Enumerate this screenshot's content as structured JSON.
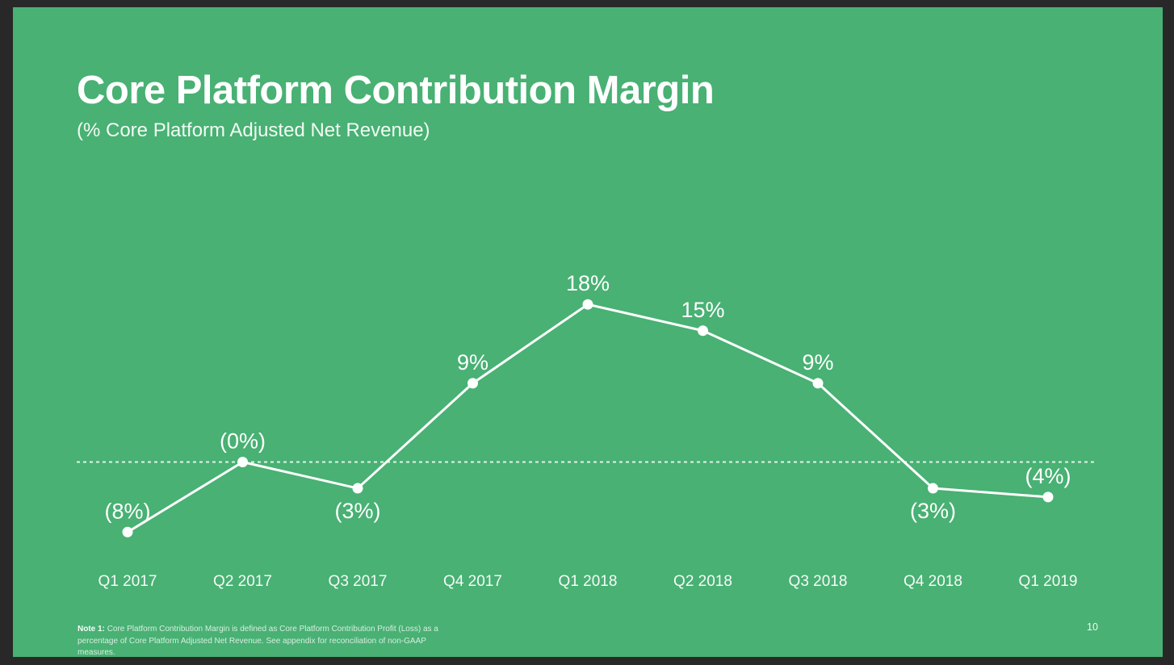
{
  "slide": {
    "title": "Core Platform Contribution Margin",
    "subtitle": "(% Core Platform Adjusted Net Revenue)",
    "page_number": "10",
    "footnote": {
      "label": "Note 1:",
      "text": "Core Platform Contribution Margin is defined as Core Platform Contribution Profit (Loss) as a percentage of Core Platform Adjusted Net Revenue. See appendix for reconciliation of non-GAAP measures."
    },
    "colors": {
      "background": "#48b173",
      "frame": "#282828",
      "series_line": "#ffffff",
      "data_point": "#ffffff",
      "zero_line": "rgba(255,255,255,0.85)",
      "text": "#ffffff"
    }
  },
  "chart_data": {
    "type": "line",
    "title": "Core Platform Contribution Margin",
    "xlabel": "",
    "ylabel": "% Core Platform Adjusted Net Revenue",
    "categories": [
      "Q1 2017",
      "Q2 2017",
      "Q3 2017",
      "Q4 2017",
      "Q1 2018",
      "Q2 2018",
      "Q3 2018",
      "Q4 2018",
      "Q1 2019"
    ],
    "values": [
      -8,
      0,
      -3,
      9,
      18,
      15,
      9,
      -3,
      -4
    ],
    "point_labels": [
      "(8%)",
      "(0%)",
      "(3%)",
      "9%",
      "18%",
      "15%",
      "9%",
      "(3%)",
      "(4%)"
    ],
    "label_placement": [
      "above",
      "above",
      "below",
      "above",
      "above",
      "above",
      "above",
      "below",
      "above"
    ],
    "ylim": [
      -12,
      22
    ],
    "zero_line_dashed": true,
    "grid": false,
    "legend": false
  }
}
